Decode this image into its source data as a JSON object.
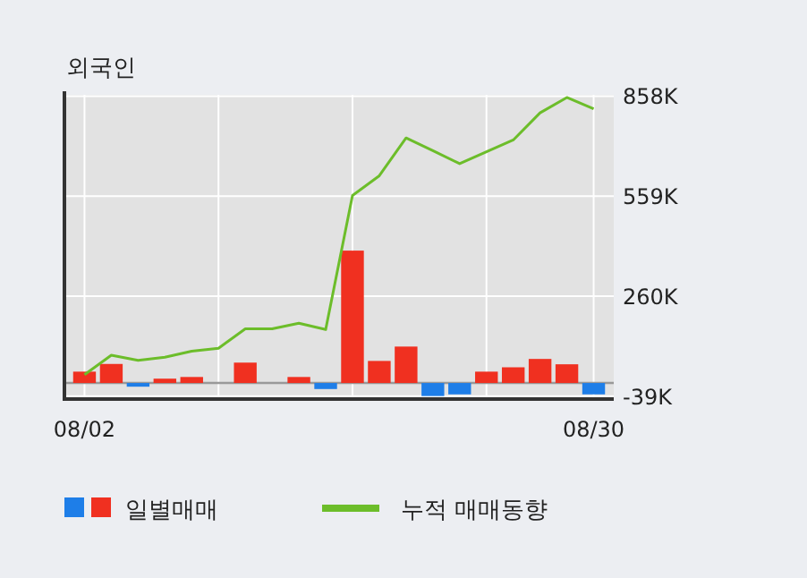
{
  "chart_data": {
    "type": "bar",
    "title": "외국인",
    "categories": [
      "08/02",
      null,
      null,
      null,
      null,
      null,
      null,
      null,
      null,
      null,
      null,
      null,
      null,
      null,
      null,
      null,
      null,
      null,
      null,
      "08/30"
    ],
    "series": [
      {
        "name": "일별매매",
        "colors": [
          "#f03020",
          "#f03020",
          "#1e7ee8",
          "#f03020",
          "#f03020",
          "#f03020",
          "#f03020",
          "#f03020",
          "#f03020",
          "#1e7ee8",
          "#f03020",
          "#f03020",
          "#f03020",
          "#1e7ee8",
          "#1e7ee8",
          "#f03020",
          "#f03020",
          "#f03020",
          "#f03020",
          "#1e7ee8"
        ],
        "values": [
          34,
          57,
          -11,
          13,
          18,
          0,
          61,
          0,
          18,
          -18,
          396,
          66,
          109,
          -39,
          -34,
          34,
          47,
          72,
          56,
          -34
        ]
      },
      {
        "name": "누적 매매동향",
        "type": "line",
        "color": "#6cbd2a",
        "values": [
          25,
          83,
          68,
          77,
          95,
          104,
          162,
          162,
          179,
          160,
          561,
          620,
          733,
          695,
          656,
          692,
          727,
          808,
          854,
          820
        ]
      }
    ],
    "ylim": [
      -48,
      862
    ],
    "yticks": [
      {
        "value": -39,
        "label": "-39K"
      },
      {
        "value": 260,
        "label": "260K"
      },
      {
        "value": 559,
        "label": "559K"
      },
      {
        "value": 858,
        "label": "858K"
      }
    ],
    "grid": true,
    "legend": "bottom"
  }
}
